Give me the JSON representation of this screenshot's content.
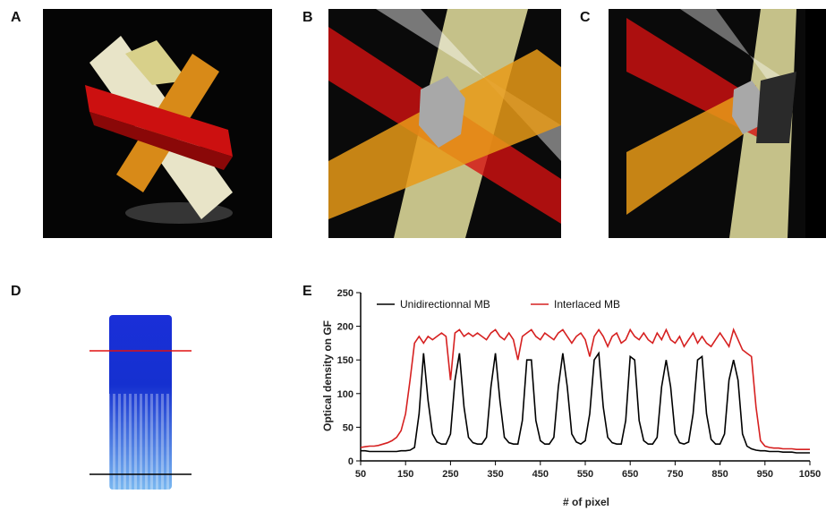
{
  "panels": {
    "a": "A",
    "b": "B",
    "c": "C",
    "d": "D",
    "e": "E"
  },
  "chart_data": {
    "type": "line",
    "y_label": "Optical density on GF",
    "x_label": "# of pixel",
    "x": [
      50,
      60,
      70,
      80,
      90,
      100,
      110,
      120,
      130,
      140,
      150,
      160,
      170,
      180,
      190,
      200,
      210,
      220,
      230,
      240,
      250,
      260,
      270,
      280,
      290,
      300,
      310,
      320,
      330,
      340,
      350,
      360,
      370,
      380,
      390,
      400,
      410,
      420,
      430,
      440,
      450,
      460,
      470,
      480,
      490,
      500,
      510,
      520,
      530,
      540,
      550,
      560,
      570,
      580,
      590,
      600,
      610,
      620,
      630,
      640,
      650,
      660,
      670,
      680,
      690,
      700,
      710,
      720,
      730,
      740,
      750,
      760,
      770,
      780,
      790,
      800,
      810,
      820,
      830,
      840,
      850,
      860,
      870,
      880,
      890,
      900,
      910,
      920,
      930,
      940,
      950,
      960,
      970,
      980,
      990,
      1000,
      1010,
      1020,
      1030,
      1040,
      1050
    ],
    "series": [
      {
        "name": "Unidirectionnal MB",
        "color": "#000000",
        "values": [
          15,
          15,
          14,
          14,
          14,
          14,
          14,
          14,
          14,
          15,
          15,
          16,
          20,
          70,
          160,
          90,
          40,
          28,
          25,
          25,
          40,
          120,
          160,
          80,
          35,
          27,
          25,
          25,
          35,
          110,
          160,
          90,
          35,
          27,
          25,
          25,
          60,
          150,
          150,
          60,
          30,
          25,
          25,
          35,
          110,
          160,
          110,
          40,
          28,
          25,
          30,
          70,
          150,
          160,
          80,
          35,
          27,
          25,
          25,
          60,
          155,
          150,
          60,
          30,
          25,
          25,
          35,
          110,
          150,
          110,
          40,
          27,
          25,
          28,
          70,
          150,
          155,
          70,
          32,
          25,
          25,
          40,
          120,
          150,
          120,
          40,
          22,
          18,
          16,
          15,
          15,
          14,
          14,
          14,
          13,
          13,
          13,
          12,
          12,
          12,
          12
        ]
      },
      {
        "name": "Interlaced MB",
        "color": "#d62020",
        "values": [
          20,
          21,
          22,
          22,
          23,
          25,
          27,
          30,
          35,
          45,
          70,
          120,
          175,
          185,
          175,
          185,
          180,
          185,
          190,
          185,
          120,
          190,
          195,
          185,
          190,
          185,
          190,
          185,
          180,
          190,
          195,
          185,
          180,
          190,
          180,
          150,
          185,
          190,
          195,
          185,
          180,
          190,
          185,
          180,
          190,
          195,
          185,
          175,
          185,
          190,
          180,
          155,
          185,
          195,
          185,
          170,
          185,
          190,
          175,
          180,
          195,
          185,
          180,
          190,
          180,
          175,
          190,
          180,
          195,
          180,
          175,
          185,
          170,
          180,
          190,
          175,
          185,
          175,
          170,
          180,
          190,
          180,
          170,
          195,
          180,
          165,
          160,
          155,
          80,
          30,
          22,
          20,
          19,
          19,
          18,
          18,
          18,
          17,
          17,
          17,
          17
        ]
      }
    ],
    "xlim": [
      50,
      1050
    ],
    "ylim": [
      0,
      250
    ],
    "xticks": [
      50,
      150,
      250,
      350,
      450,
      550,
      650,
      750,
      850,
      950,
      1050
    ],
    "yticks": [
      0,
      50,
      100,
      150,
      200,
      250
    ],
    "legend": "top-left"
  }
}
